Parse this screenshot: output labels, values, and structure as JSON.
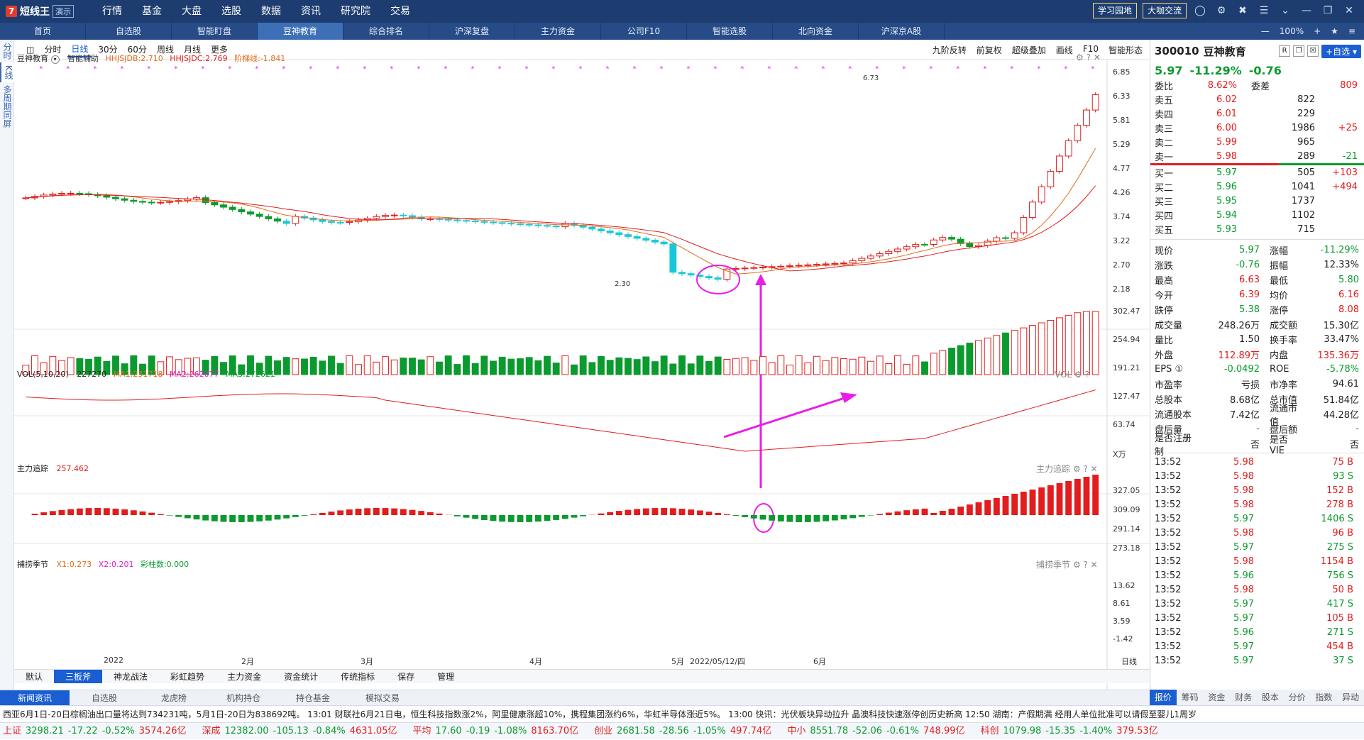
{
  "app": {
    "logo_mark": "7",
    "logo_text": "短线王",
    "logo_demo": "演示",
    "menu": [
      "行情",
      "基金",
      "大盘",
      "选股",
      "数据",
      "资讯",
      "研究院",
      "交易"
    ],
    "buttons": [
      "学习园地",
      "大咖交流"
    ]
  },
  "tabs": {
    "items": [
      "首页",
      "自选股",
      "智能盯盘",
      "豆神教育",
      "综合排名",
      "沪深复盘",
      "主力资金",
      "公司F10",
      "智能选股",
      "北向资金",
      "沪深京A股"
    ],
    "active_index": 3,
    "zoom": "100%"
  },
  "leftstrip": [
    "分时",
    "K线",
    "多周期同屏"
  ],
  "periods": {
    "items": [
      "分时",
      "日线",
      "30分",
      "60分",
      "周线",
      "月线",
      "更多"
    ],
    "active": "日线",
    "right": [
      "九阶反转",
      "前复权",
      "超级叠加",
      "画线",
      "F10",
      "智能形态"
    ]
  },
  "kline_legend": {
    "name": "豆神教育",
    "assist": "智能辅助",
    "jdb": "HHJSJDB:2.710",
    "jdc": "HHJSJDC:2.769",
    "ladder": "阶梯线:-1.841"
  },
  "kline_axis": [
    "6.85",
    "6.33",
    "5.81",
    "5.29",
    "4.77",
    "4.26",
    "3.74",
    "3.22",
    "2.70",
    "2.18"
  ],
  "kline_labels": {
    "high": "6.73",
    "low": "2.30"
  },
  "vol_legend": {
    "name": "VOL(5,10,20)",
    "v": "227270",
    "ma1": "MA1:231718",
    "ma2": "MA2:262077",
    "ma3": "MA3:272621",
    "right": "VOL"
  },
  "vol_axis": [
    "302.47",
    "254.94",
    "191.21",
    "127.47",
    "63.74",
    "X万"
  ],
  "track_legend": {
    "name": "主力追踪",
    "value": "257.462",
    "right": "主力追踪"
  },
  "track_axis": [
    "327.05",
    "309.09",
    "291.14",
    "273.18"
  ],
  "catch_legend": {
    "name": "捕捞季节",
    "x1": "X1:0.273",
    "x2": "X2:0.201",
    "bar": "彩柱数:0.000",
    "right": "捕捞季节"
  },
  "catch_axis": [
    "13.62",
    "8.61",
    "3.59",
    "-1.42"
  ],
  "xaxis": [
    "2022",
    "2月",
    "3月",
    "4月",
    "5月",
    "2022/05/12/四",
    "6月",
    "日线"
  ],
  "bottom_tabs": {
    "items": [
      "默认",
      "三板斧",
      "神龙战法",
      "彩虹趋势",
      "主力资金",
      "资金统计",
      "传统指标",
      "保存",
      "管理"
    ],
    "active": "三板斧"
  },
  "news_tabs": {
    "items": [
      "新闻资讯",
      "自选股",
      "龙虎榜",
      "机构持仓",
      "持仓基金",
      "模拟交易"
    ],
    "active": "新闻资讯"
  },
  "right_tabs": {
    "items": [
      "报价",
      "筹码",
      "资金",
      "财务",
      "股本",
      "分价",
      "指数",
      "异动"
    ],
    "active": "报价"
  },
  "ticker": "西亚6月1日-20日棕榈油出口量将达到734231吨，5月1日-20日为838692吨。    13:01 财联社6月21日电，恒生科技指数涨2%，阿里健康涨超10%，携程集团涨约6%，华虹半导体涨近5%。    13:00 快讯：光伏板块异动拉升 晶澳科技快速涨停创历史新高    12:50 湖南：产假期满 经用人单位批准可以请假至婴儿1周岁",
  "indices": [
    {
      "name": "上证",
      "price": "3298.21",
      "chg": "-17.22",
      "pct": "-0.52%",
      "amt": "3574.26亿"
    },
    {
      "name": "深成",
      "price": "12382.00",
      "chg": "-105.13",
      "pct": "-0.84%",
      "amt": "4631.05亿"
    },
    {
      "name": "平均",
      "price": "17.60",
      "chg": "-0.19",
      "pct": "-1.08%",
      "amt": "8163.70亿"
    },
    {
      "name": "创业",
      "price": "2681.58",
      "chg": "-28.56",
      "pct": "-1.05%",
      "amt": "497.74亿"
    },
    {
      "name": "中小",
      "price": "8551.78",
      "chg": "-52.06",
      "pct": "-0.61%",
      "amt": "748.99亿"
    },
    {
      "name": "科创",
      "price": "1079.98",
      "chg": "-15.35",
      "pct": "-1.40%",
      "amt": "379.53亿"
    }
  ],
  "quote": {
    "code": "300010",
    "name": "豆神教育",
    "price": "5.97",
    "pct": "-11.29%",
    "chg": "-0.76",
    "weibi_label": "委比",
    "weibi": "8.62%",
    "weicha_label": "委差",
    "weicha": "809",
    "asks": [
      {
        "label": "卖五",
        "price": "6.02",
        "vol": "822",
        "delta": ""
      },
      {
        "label": "卖四",
        "price": "6.01",
        "vol": "229",
        "delta": ""
      },
      {
        "label": "卖三",
        "price": "6.00",
        "vol": "1986",
        "delta": "+25"
      },
      {
        "label": "卖二",
        "price": "5.99",
        "vol": "965",
        "delta": ""
      },
      {
        "label": "卖一",
        "price": "5.98",
        "vol": "289",
        "delta": "-21"
      }
    ],
    "bids": [
      {
        "label": "买一",
        "price": "5.97",
        "vol": "505",
        "delta": "+103"
      },
      {
        "label": "买二",
        "price": "5.96",
        "vol": "1041",
        "delta": "+494"
      },
      {
        "label": "买三",
        "price": "5.95",
        "vol": "1737",
        "delta": ""
      },
      {
        "label": "买四",
        "price": "5.94",
        "vol": "1102",
        "delta": ""
      },
      {
        "label": "买五",
        "price": "5.93",
        "vol": "715",
        "delta": ""
      }
    ],
    "stats": [
      [
        "现价",
        "5.97",
        "涨幅",
        "-11.29%"
      ],
      [
        "涨跌",
        "-0.76",
        "振幅",
        "12.33%"
      ],
      [
        "最高",
        "6.63",
        "最低",
        "5.80"
      ],
      [
        "今开",
        "6.39",
        "均价",
        "6.16"
      ],
      [
        "跌停",
        "5.38",
        "涨停",
        "8.08"
      ],
      [
        "成交量",
        "248.26万",
        "成交额",
        "15.30亿"
      ],
      [
        "量比",
        "1.50",
        "换手率",
        "33.47%"
      ],
      [
        "外盘",
        "112.89万",
        "内盘",
        "135.36万"
      ],
      [
        "EPS ①",
        "-0.0492",
        "ROE",
        "-5.78%"
      ],
      [
        "市盈率",
        "亏损",
        "市净率",
        "94.61"
      ],
      [
        "总股本",
        "8.68亿",
        "总市值",
        "51.84亿"
      ],
      [
        "流通股本",
        "7.42亿",
        "流通市值",
        "44.28亿"
      ],
      [
        "盘后量",
        "-",
        "盘后额",
        "-"
      ],
      [
        "是否注册制",
        "否",
        "是否VIE",
        "否"
      ]
    ],
    "trades": [
      [
        "13:52",
        "5.98",
        "75 B"
      ],
      [
        "13:52",
        "5.98",
        "93 S"
      ],
      [
        "13:52",
        "5.98",
        "152 B"
      ],
      [
        "13:52",
        "5.98",
        "278 B"
      ],
      [
        "13:52",
        "5.97",
        "1406 S"
      ],
      [
        "13:52",
        "5.98",
        "96 B"
      ],
      [
        "13:52",
        "5.97",
        "275 S"
      ],
      [
        "13:52",
        "5.98",
        "1154 B"
      ],
      [
        "13:52",
        "5.96",
        "756 S"
      ],
      [
        "13:52",
        "5.98",
        "50 B"
      ],
      [
        "13:52",
        "5.97",
        "417 S"
      ],
      [
        "13:52",
        "5.97",
        "105 B"
      ],
      [
        "13:52",
        "5.96",
        "271 S"
      ],
      [
        "13:52",
        "5.97",
        "454 B"
      ],
      [
        "13:52",
        "5.97",
        "37 S"
      ]
    ]
  },
  "colors": {
    "up": "#e21d1d",
    "down": "#0b9a2e",
    "accent": "#1a5ed1",
    "arrow": "#ea1de8"
  }
}
